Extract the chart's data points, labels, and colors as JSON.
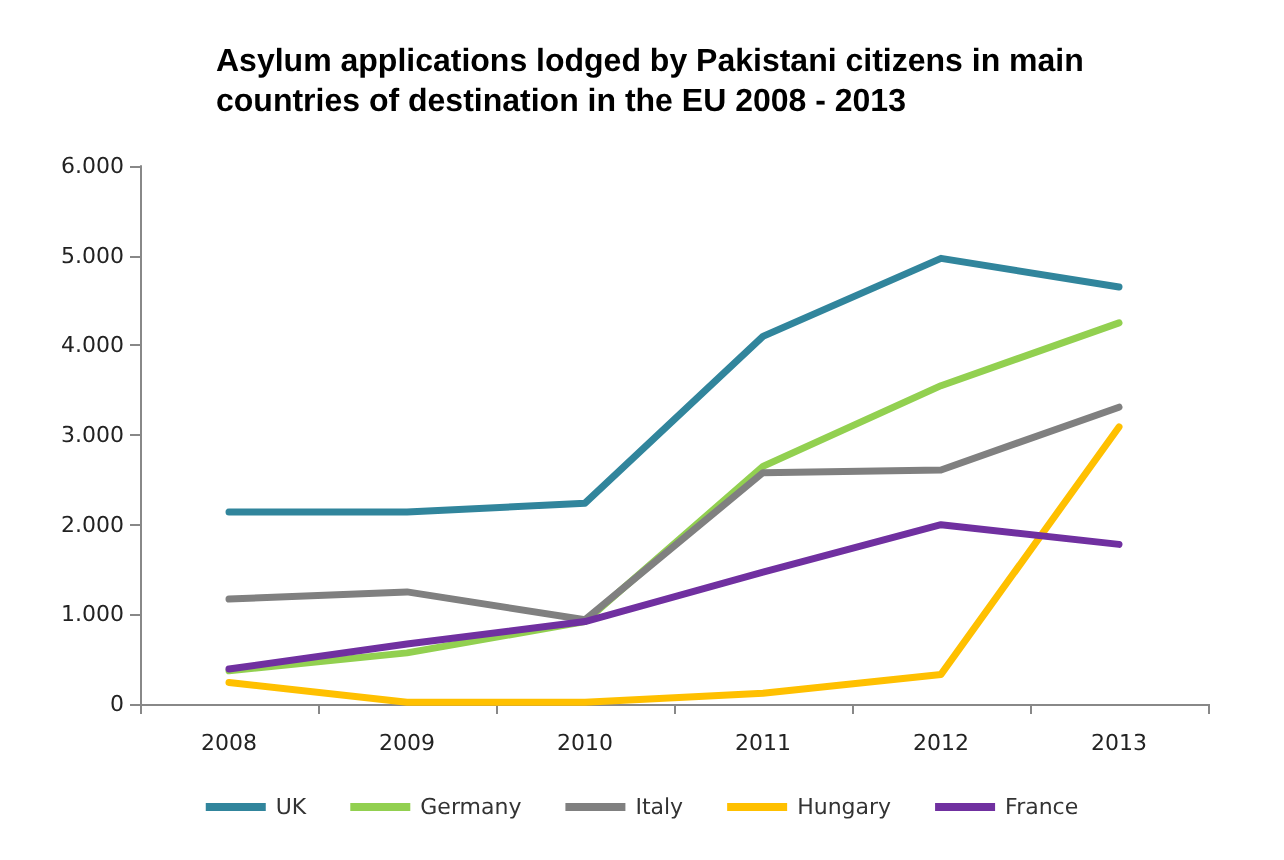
{
  "chart_data": {
    "type": "line",
    "title": "Asylum applications lodged by Pakistani citizens in main countries of destination in the EU 2008 - 2013",
    "categories": [
      "2008",
      "2009",
      "2010",
      "2011",
      "2012",
      "2013"
    ],
    "series": [
      {
        "name": "UK",
        "color": "#31859c",
        "values": [
          2140,
          2140,
          2240,
          4100,
          4970,
          4650
        ]
      },
      {
        "name": "Germany",
        "color": "#92d050",
        "values": [
          370,
          570,
          920,
          2650,
          3550,
          4250
        ]
      },
      {
        "name": "Italy",
        "color": "#808080",
        "values": [
          1170,
          1250,
          940,
          2580,
          2610,
          3310
        ]
      },
      {
        "name": "Hungary",
        "color": "#ffc000",
        "values": [
          240,
          20,
          20,
          120,
          330,
          3090
        ]
      },
      {
        "name": "France",
        "color": "#7030a0",
        "values": [
          390,
          670,
          920,
          1470,
          2000,
          1780
        ]
      }
    ],
    "ylim": [
      0,
      6000
    ],
    "yticks": [
      0,
      {
        "value": 1000,
        "label": "1.000"
      },
      {
        "value": 2000,
        "label": "2.000"
      },
      {
        "value": 3000,
        "label": "3.000"
      },
      {
        "value": 4000,
        "label": "4.000"
      },
      {
        "value": 5000,
        "label": "5.000"
      },
      {
        "value": 6000,
        "label": "6.000"
      }
    ],
    "grid": false,
    "legend": "bottom",
    "marker": "none",
    "line_style": "solid"
  }
}
